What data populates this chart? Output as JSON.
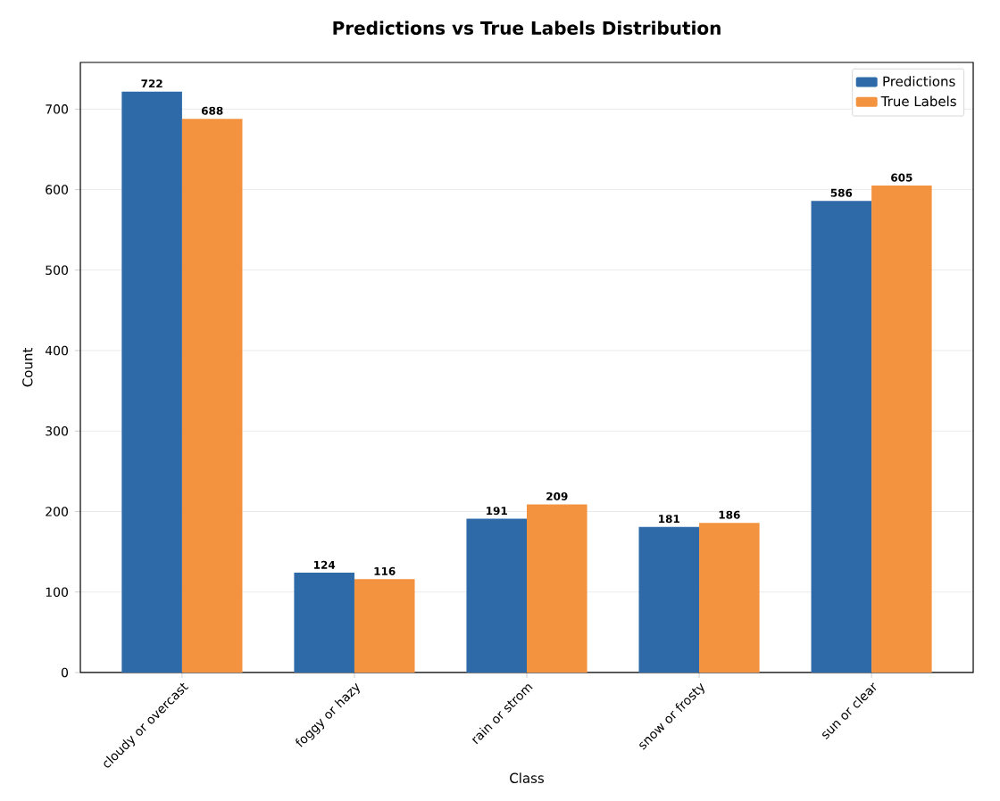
{
  "chart_data": {
    "type": "bar",
    "title": "Predictions vs True Labels Distribution",
    "xlabel": "Class",
    "ylabel": "Count",
    "categories": [
      "cloudy or overcast",
      "foggy or hazy",
      "rain or strom",
      "snow or frosty",
      "sun or clear"
    ],
    "series": [
      {
        "name": "Predictions",
        "color": "#2e6aa8",
        "values": [
          722,
          124,
          191,
          181,
          586
        ]
      },
      {
        "name": "True Labels",
        "color": "#f39340",
        "values": [
          688,
          116,
          209,
          186,
          605
        ]
      }
    ],
    "ylim": [
      0,
      758
    ],
    "yticks": [
      0,
      100,
      200,
      300,
      400,
      500,
      600,
      700
    ],
    "grid": "y",
    "legend": "top right",
    "data_labels": true
  }
}
